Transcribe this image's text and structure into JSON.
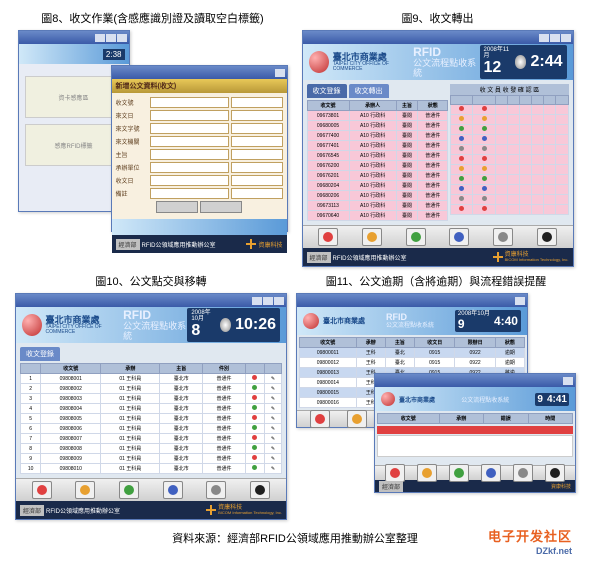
{
  "captions": {
    "fig8": "圖8、收文作業(含感應識別證及讀取空白標籤)",
    "fig9": "圖9、收文轉出",
    "fig10": "圖10、公文點交與移轉",
    "fig11": "圖11、公文逾期（含將逾期）與流程錯誤提醒"
  },
  "banner": {
    "org_name": "臺北市商業處",
    "org_sub": "TAIPEI CITY OFFICE OF COMMERCE",
    "rfid": "RFID",
    "system_name": "公文流程點收系統"
  },
  "dates": {
    "fig9": {
      "date_label": "2008年11月",
      "day": "12",
      "time": "2:44"
    },
    "fig10": {
      "date_label": "2008年10月",
      "day": "8",
      "time": "10:26"
    },
    "fig11a": {
      "date_label": "2008年10月",
      "day": "9",
      "time": "4:40"
    },
    "fig11b": {
      "date_label": "2008年10月",
      "day": "9",
      "time": "4:41"
    }
  },
  "fig8": {
    "form_title": "新增公文資料(收文)",
    "box1": "資卡感應區",
    "box2": "感應RFID標籤",
    "form_time": "2:38",
    "labels": [
      "收文號",
      "來文日",
      "來文字號",
      "來文機關",
      "主旨",
      "承辦單位",
      "收文日",
      "備註"
    ]
  },
  "fig9": {
    "tabs": [
      "收文登錄",
      "收文轉出"
    ],
    "grid_left_headers": [
      "收文號",
      "承辦人",
      "主旨",
      "狀態"
    ],
    "grid_right_header": "收 文 員 收 發 確 認 區",
    "rows": [
      [
        "09673801",
        "A10 行政科",
        "臺閱",
        "普通件"
      ],
      [
        "09680005",
        "A10 行政科",
        "臺閱",
        "普通件"
      ],
      [
        "09677400",
        "A10 行政科",
        "臺閱",
        "普通件"
      ],
      [
        "09677401",
        "A10 行政科",
        "臺閱",
        "普通件"
      ],
      [
        "09676545",
        "A10 行政科",
        "臺閱",
        "普通件"
      ],
      [
        "09676200",
        "A10 行政科",
        "臺閱",
        "普通件"
      ],
      [
        "09676201",
        "A10 行政科",
        "臺閱",
        "普通件"
      ],
      [
        "09680204",
        "A10 行政科",
        "臺閱",
        "普通件"
      ],
      [
        "09680206",
        "A10 行政科",
        "臺閱",
        "普通件"
      ],
      [
        "09673113",
        "A10 行政科",
        "臺閱",
        "普通件"
      ],
      [
        "09670640",
        "A10 行政科",
        "臺閱",
        "普通件"
      ]
    ],
    "indicator_colors": [
      "#e04040",
      "#e8a030",
      "#40a040",
      "#4060c0",
      "#888"
    ]
  },
  "fig10": {
    "tabs": [
      "收文登錄"
    ],
    "grid_headers": [
      "",
      "收文號",
      "承辦",
      "主旨",
      "件別",
      "",
      ""
    ],
    "rows": [
      [
        "09808001",
        "01 王科員",
        "臺北市",
        "普通件"
      ],
      [
        "09808002",
        "01 王科員",
        "臺北市",
        "普通件"
      ],
      [
        "09808003",
        "01 王科員",
        "臺北市",
        "普通件"
      ],
      [
        "09808004",
        "01 王科員",
        "臺北市",
        "普通件"
      ],
      [
        "09808005",
        "01 王科員",
        "臺北市",
        "普通件"
      ],
      [
        "09808006",
        "01 王科員",
        "臺北市",
        "普通件"
      ],
      [
        "09808007",
        "01 王科員",
        "臺北市",
        "普通件"
      ],
      [
        "09808008",
        "01 王科員",
        "臺北市",
        "普通件"
      ],
      [
        "09808009",
        "01 王科員",
        "臺北市",
        "普通件"
      ],
      [
        "09808010",
        "01 王科員",
        "臺北市",
        "普通件"
      ]
    ],
    "dot_colors": [
      "#e04040",
      "#40a040"
    ]
  },
  "fig11": {
    "back_headers": [
      "收文號",
      "承辦",
      "主旨",
      "收文日",
      "限辦日",
      "狀態"
    ],
    "back_rows": [
      [
        "09800011",
        "王科",
        "臺北",
        "0915",
        "0922",
        "逾期"
      ],
      [
        "09800012",
        "王科",
        "臺北",
        "0915",
        "0922",
        "逾期"
      ],
      [
        "09800013",
        "王科",
        "臺北",
        "0915",
        "0922",
        "將逾"
      ],
      [
        "09800014",
        "王科",
        "臺北",
        "0915",
        "0922",
        "將逾"
      ],
      [
        "09800015",
        "王科",
        "臺北",
        "0915",
        "0922",
        "正常"
      ],
      [
        "09800016",
        "王科",
        "臺北",
        "0915",
        "0922",
        "正常"
      ]
    ],
    "row_styles": [
      "blue-row",
      "white-row",
      "blue-row",
      "white-row",
      "blue-row",
      "white-row"
    ],
    "front_headers": [
      "收文號",
      "承辦",
      "錯誤",
      "時間"
    ]
  },
  "toolbar_colors": [
    "#e04040",
    "#e8a030",
    "#40a040",
    "#4060c0",
    "#888888",
    "#202020"
  ],
  "footer": {
    "badge": "經濟部",
    "left_text": "RFID公領域應用推動辦公室",
    "right_brand": "資康科技",
    "right_sub": "BICOM Information Technology, Inc."
  },
  "source": "資料來源：經濟部RFID公領域應用推動辦公室整理",
  "watermark": {
    "main": "电子开发社区",
    "sub": "DZkf.net"
  }
}
